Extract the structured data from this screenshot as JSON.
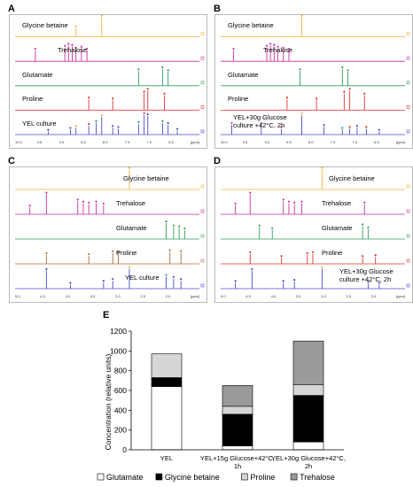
{
  "panels": [
    {
      "letter": "A",
      "traces": [
        {
          "label": "Glycine betaine",
          "color": "#f2b13a",
          "peaks": [
            [
              0.33,
              0.45,
              "#f2b13a"
            ],
            [
              0.47,
              1.0,
              "#f2b13a"
            ]
          ]
        },
        {
          "label": "Trehalose",
          "color": "#cc2ea3",
          "peaks": [
            [
              0.11,
              0.55,
              "#cc2ea3"
            ],
            [
              0.27,
              0.7,
              "#cc2ea3"
            ],
            [
              0.29,
              0.8,
              "#cc2ea3"
            ],
            [
              0.31,
              0.75,
              "#cc2ea3"
            ],
            [
              0.33,
              0.6,
              "#cc2ea3"
            ],
            [
              0.36,
              0.65,
              "#cc2ea3"
            ],
            [
              0.39,
              0.55,
              "#cc2ea3"
            ]
          ]
        },
        {
          "label": "Glutamate",
          "color": "#2e9e5a",
          "peaks": [
            [
              0.67,
              0.75,
              "#2e9e5a"
            ],
            [
              0.8,
              0.85,
              "#2e9e5a"
            ],
            [
              0.83,
              0.7,
              "#2e9e5a"
            ]
          ]
        },
        {
          "label": "Proline",
          "color": "#e0332e",
          "peaks": [
            [
              0.4,
              0.55,
              "#e0332e"
            ],
            [
              0.53,
              0.5,
              "#e0332e"
            ],
            [
              0.7,
              0.85,
              "#e0332e"
            ],
            [
              0.72,
              1.0,
              "#e0332e"
            ],
            [
              0.81,
              0.75,
              "#e0332e"
            ]
          ]
        },
        {
          "label": "YEL culture",
          "color": "#4a4ad0",
          "peaks": [
            [
              0.18,
              0.15,
              "#4a4ad0"
            ],
            [
              0.3,
              0.25,
              "#4a4ad0"
            ],
            [
              0.33,
              0.35,
              "#f2b13a"
            ],
            [
              0.4,
              0.45,
              "#e0332e"
            ],
            [
              0.44,
              0.6,
              "#2e9e5a"
            ],
            [
              0.47,
              0.9,
              "#f2b13a"
            ],
            [
              0.53,
              0.35,
              "#4a4ad0"
            ],
            [
              0.56,
              0.3,
              "#4a4ad0"
            ],
            [
              0.67,
              0.55,
              "#2e9e5a"
            ],
            [
              0.7,
              1.0,
              "#e0332e"
            ],
            [
              0.72,
              0.95,
              "#4a4ad0"
            ],
            [
              0.8,
              0.6,
              "#2e9e5a"
            ],
            [
              0.83,
              0.5,
              "#4a4ad0"
            ],
            [
              0.88,
              0.2,
              "#4a4ad0"
            ]
          ]
        }
      ],
      "axis_ticks": [
        "10.0",
        "9.5",
        "9.0",
        "8.5",
        "8.0",
        "7.5",
        "7.0",
        "6.5",
        "[ppm]"
      ]
    },
    {
      "letter": "B",
      "traces": [
        {
          "label": "Glycine betaine",
          "color": "#f2b13a",
          "peaks": [
            [
              0.44,
              1.0,
              "#f2b13a"
            ]
          ]
        },
        {
          "label": "Trehalose",
          "color": "#cc2ea3",
          "peaks": [
            [
              0.07,
              0.55,
              "#cc2ea3"
            ],
            [
              0.25,
              0.7,
              "#cc2ea3"
            ],
            [
              0.27,
              0.8,
              "#cc2ea3"
            ],
            [
              0.29,
              0.75,
              "#cc2ea3"
            ],
            [
              0.31,
              0.65,
              "#cc2ea3"
            ],
            [
              0.34,
              0.6,
              "#cc2ea3"
            ],
            [
              0.37,
              0.55,
              "#cc2ea3"
            ]
          ]
        },
        {
          "label": "Glutamate",
          "color": "#2e9e5a",
          "peaks": [
            [
              0.43,
              0.75,
              "#2e9e5a"
            ],
            [
              0.66,
              0.85,
              "#2e9e5a"
            ],
            [
              0.69,
              0.7,
              "#2e9e5a"
            ]
          ]
        },
        {
          "label": "Proline",
          "color": "#e0332e",
          "peaks": [
            [
              0.36,
              0.55,
              "#e0332e"
            ],
            [
              0.52,
              0.5,
              "#e0332e"
            ],
            [
              0.67,
              0.85,
              "#e0332e"
            ],
            [
              0.7,
              1.0,
              "#e0332e"
            ],
            [
              0.78,
              0.75,
              "#e0332e"
            ]
          ]
        },
        {
          "label": "YEL+30g Glucose culture +42°C, 2h",
          "color": "#4a4ad0",
          "peaks": [
            [
              0.06,
              0.5,
              "#cc2ea3"
            ],
            [
              0.22,
              0.5,
              "#cc2ea3"
            ],
            [
              0.33,
              0.3,
              "#e0332e"
            ],
            [
              0.44,
              1.0,
              "#f2b13a"
            ],
            [
              0.56,
              0.4,
              "#4a4ad0"
            ],
            [
              0.66,
              0.25,
              "#2e9e5a"
            ],
            [
              0.7,
              0.3,
              "#e0332e"
            ],
            [
              0.74,
              0.35,
              "#4a4ad0"
            ],
            [
              0.79,
              0.3,
              "#e0332e"
            ],
            [
              0.86,
              0.15,
              "#4a4ad0"
            ]
          ]
        }
      ],
      "axis_ticks": [
        "10.0",
        "9.5",
        "9.0",
        "8.5",
        "8.0",
        "7.5",
        "7.0",
        "6.5",
        "[ppm]"
      ]
    },
    {
      "letter": "C",
      "traces": [
        {
          "label": "Glycine betaine",
          "color": "#f2b13a",
          "peaks": [
            [
              0.62,
              1.0,
              "#f2b13a"
            ]
          ]
        },
        {
          "label": "Trehalose",
          "color": "#cc2ea3",
          "peaks": [
            [
              0.08,
              0.35,
              "#cc2ea3"
            ],
            [
              0.17,
              1.0,
              "#cc2ea3"
            ],
            [
              0.34,
              0.65,
              "#cc2ea3"
            ],
            [
              0.37,
              0.55,
              "#cc2ea3"
            ],
            [
              0.4,
              0.5,
              "#cc2ea3"
            ],
            [
              0.44,
              0.55,
              "#cc2ea3"
            ],
            [
              0.48,
              0.45,
              "#cc2ea3"
            ]
          ]
        },
        {
          "label": "Glutamate",
          "color": "#2e9e5a",
          "peaks": [
            [
              0.82,
              0.8,
              "#2e9e5a"
            ],
            [
              0.86,
              0.6,
              "#2e9e5a"
            ],
            [
              0.89,
              0.55,
              "#2e9e5a"
            ],
            [
              0.92,
              0.45,
              "#2e9e5a"
            ]
          ]
        },
        {
          "label": "Proline",
          "color": "#a86a3a",
          "peaks": [
            [
              0.17,
              0.45,
              "#a86a3a"
            ],
            [
              0.4,
              0.4,
              "#a86a3a"
            ],
            [
              0.53,
              0.55,
              "#a86a3a"
            ],
            [
              0.56,
              0.5,
              "#a86a3a"
            ],
            [
              0.84,
              0.6,
              "#a86a3a"
            ],
            [
              0.9,
              0.55,
              "#a86a3a"
            ]
          ]
        },
        {
          "label": "YEL culture",
          "color": "#4a4ad0",
          "peaks": [
            [
              0.17,
              0.9,
              "#4a4ad0"
            ],
            [
              0.3,
              0.2,
              "#4a4ad0"
            ],
            [
              0.48,
              0.3,
              "#4a4ad0"
            ],
            [
              0.53,
              0.4,
              "#4a4ad0"
            ],
            [
              0.62,
              1.0,
              "#f2b13a"
            ],
            [
              0.82,
              0.6,
              "#2e9e5a"
            ],
            [
              0.86,
              0.5,
              "#4a4ad0"
            ],
            [
              0.9,
              0.4,
              "#4a4ad0"
            ]
          ]
        }
      ],
      "axis_ticks": [
        "5.0",
        "4.5",
        "4.0",
        "3.5",
        "3.0",
        "2.5",
        "2.0",
        "[ppm]"
      ]
    },
    {
      "letter": "D",
      "traces": [
        {
          "label": "Glycine betaine",
          "color": "#f2b13a",
          "peaks": [
            [
              0.55,
              1.0,
              "#f2b13a"
            ]
          ]
        },
        {
          "label": "Trehalose",
          "color": "#cc2ea3",
          "peaks": [
            [
              0.08,
              0.45,
              "#cc2ea3"
            ],
            [
              0.16,
              1.0,
              "#cc2ea3"
            ],
            [
              0.34,
              0.65,
              "#cc2ea3"
            ],
            [
              0.37,
              0.55,
              "#cc2ea3"
            ],
            [
              0.4,
              0.5,
              "#cc2ea3"
            ],
            [
              0.44,
              0.55,
              "#cc2ea3"
            ],
            [
              0.78,
              0.5,
              "#cc2ea3"
            ]
          ]
        },
        {
          "label": "Glutamate",
          "color": "#2e9e5a",
          "peaks": [
            [
              0.21,
              0.6,
              "#2e9e5a"
            ],
            [
              0.28,
              0.45,
              "#2e9e5a"
            ],
            [
              0.77,
              0.65,
              "#2e9e5a"
            ],
            [
              0.8,
              0.5,
              "#2e9e5a"
            ]
          ]
        },
        {
          "label": "Proline",
          "color": "#e0332e",
          "peaks": [
            [
              0.16,
              0.5,
              "#e0332e"
            ],
            [
              0.33,
              0.3,
              "#e0332e"
            ],
            [
              0.47,
              0.45,
              "#e0332e"
            ],
            [
              0.5,
              0.5,
              "#e0332e"
            ],
            [
              0.77,
              0.3,
              "#e0332e"
            ],
            [
              0.84,
              0.35,
              "#e0332e"
            ]
          ]
        },
        {
          "label": "YEL+30g Glucose culture +42°C, 2h",
          "color": "#4a4ad0",
          "peaks": [
            [
              0.08,
              0.3,
              "#4a4ad0"
            ],
            [
              0.17,
              0.9,
              "#4a4ad0"
            ],
            [
              0.34,
              0.3,
              "#4a4ad0"
            ],
            [
              0.4,
              0.35,
              "#4a4ad0"
            ],
            [
              0.55,
              1.0,
              "#f2b13a"
            ],
            [
              0.8,
              0.25,
              "#4a4ad0"
            ],
            [
              0.86,
              0.2,
              "#4a4ad0"
            ]
          ]
        }
      ],
      "axis_ticks": [
        "5.0",
        "4.5",
        "4.0",
        "3.5",
        "3.0",
        "2.5",
        "2.0",
        "[ppm]"
      ]
    }
  ],
  "panel_e": {
    "letter": "E",
    "chart_data": {
      "type": "bar",
      "stacked": true,
      "categories": [
        "YEL",
        "YEL+15g Glucose+42°C, 1h",
        "YEL+30g Glucose+42°C, 2h"
      ],
      "category_lines": [
        [
          "YEL"
        ],
        [
          "YEL+15g Glucose+42°C,",
          "1h"
        ],
        [
          "YEL+30g Glucose+42°C,",
          "2h"
        ]
      ],
      "series": [
        {
          "name": "Glutamate",
          "color": "#ffffff",
          "values": [
            640,
            40,
            80
          ]
        },
        {
          "name": "Glycine betaine",
          "color": "#000000",
          "values": [
            90,
            320,
            470
          ]
        },
        {
          "name": "Proline",
          "color": "#d6d6d6",
          "values": [
            240,
            80,
            110
          ]
        },
        {
          "name": "Trehalose",
          "color": "#9a9a9a",
          "values": [
            0,
            210,
            440
          ]
        }
      ],
      "ylabel": "Concentration (relative units)",
      "ylim": [
        0,
        1200
      ],
      "yticks": [
        0,
        200,
        400,
        600,
        800,
        1000,
        1200
      ],
      "legend_position": "bottom"
    }
  }
}
